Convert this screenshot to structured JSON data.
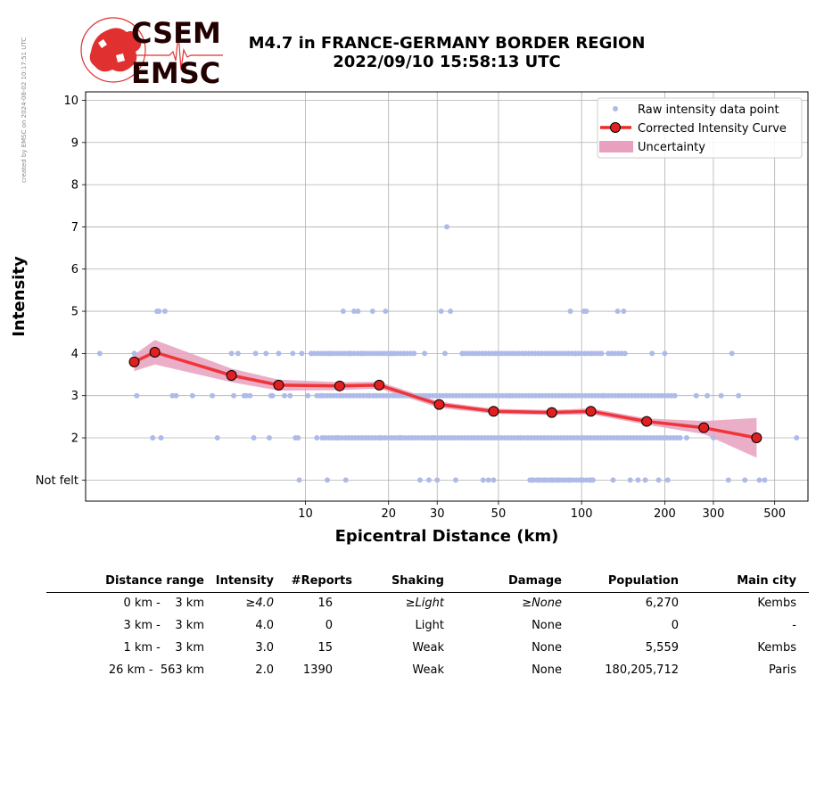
{
  "side_note": "created by EMSC on 2024-08-02 10:17:51 UTC",
  "logo": {
    "line1": "CSEM",
    "line2": "EMSC",
    "brand_color": "#e03030"
  },
  "title": {
    "line1": "M4.7 in FRANCE-GERMANY BORDER REGION",
    "line2": "2022/09/10 15:58:13 UTC"
  },
  "chart_data": {
    "type": "scatter",
    "xlabel": "Epicentral Distance (km)",
    "ylabel": "Intensity",
    "x_scale": "log",
    "xlim": [
      1.6,
      660
    ],
    "ylim": [
      0.5,
      10.2
    ],
    "x_ticks": [
      10,
      20,
      30,
      50,
      100,
      200,
      300,
      500
    ],
    "y_ticks": [
      {
        "value": 1,
        "label": "Not felt"
      },
      {
        "value": 2,
        "label": "2"
      },
      {
        "value": 3,
        "label": "3"
      },
      {
        "value": 4,
        "label": "4"
      },
      {
        "value": 5,
        "label": "5"
      },
      {
        "value": 6,
        "label": "6"
      },
      {
        "value": 7,
        "label": "7"
      },
      {
        "value": 8,
        "label": "8"
      },
      {
        "value": 9,
        "label": "9"
      },
      {
        "value": 10,
        "label": "10"
      }
    ],
    "grid": true,
    "legend_position": "top-right",
    "legend": [
      {
        "label": "Raw intensity data point",
        "kind": "dot"
      },
      {
        "label": "Corrected Intensity Curve",
        "kind": "line"
      },
      {
        "label": "Uncertainty",
        "kind": "band"
      }
    ],
    "colors": {
      "raw": "#aebbe8",
      "curve": "#f02828",
      "marker": "#e02020",
      "band": "#e8a0be"
    },
    "raw_points": [
      {
        "x": 1.8,
        "y": 4
      },
      {
        "x": 2.4,
        "y": 4
      },
      {
        "x": 2.45,
        "y": 3
      },
      {
        "x": 2.8,
        "y": 2
      },
      {
        "x": 2.9,
        "y": 5
      },
      {
        "x": 2.95,
        "y": 5
      },
      {
        "x": 3.0,
        "y": 2
      },
      {
        "x": 3.1,
        "y": 5
      },
      {
        "x": 3.3,
        "y": 3
      },
      {
        "x": 3.4,
        "y": 3
      },
      {
        "x": 3.9,
        "y": 3
      },
      {
        "x": 4.6,
        "y": 3
      },
      {
        "x": 4.8,
        "y": 2
      },
      {
        "x": 5.4,
        "y": 4
      },
      {
        "x": 5.5,
        "y": 3
      },
      {
        "x": 5.7,
        "y": 4
      },
      {
        "x": 6.0,
        "y": 3
      },
      {
        "x": 6.1,
        "y": 3
      },
      {
        "x": 6.3,
        "y": 3
      },
      {
        "x": 6.5,
        "y": 2
      },
      {
        "x": 6.6,
        "y": 4
      },
      {
        "x": 7.2,
        "y": 4
      },
      {
        "x": 7.4,
        "y": 2
      },
      {
        "x": 7.5,
        "y": 3
      },
      {
        "x": 7.6,
        "y": 3
      },
      {
        "x": 8.0,
        "y": 4
      },
      {
        "x": 8.4,
        "y": 3
      },
      {
        "x": 8.8,
        "y": 3
      },
      {
        "x": 9.0,
        "y": 4
      },
      {
        "x": 9.2,
        "y": 2
      },
      {
        "x": 9.4,
        "y": 2
      },
      {
        "x": 9.5,
        "y": 1
      },
      {
        "x": 9.7,
        "y": 4
      },
      {
        "x": 10.2,
        "y": 3
      },
      {
        "x": 10.5,
        "y": 4
      },
      {
        "x": 11,
        "y": 2
      },
      {
        "x": 11.5,
        "y": 3
      },
      {
        "x": 12,
        "y": 1
      },
      {
        "x": 12.3,
        "y": 4
      },
      {
        "x": 13,
        "y": 2
      },
      {
        "x": 13.4,
        "y": 3
      },
      {
        "x": 13.7,
        "y": 5
      },
      {
        "x": 14,
        "y": 1
      },
      {
        "x": 14.5,
        "y": 4
      },
      {
        "x": 15,
        "y": 5
      },
      {
        "x": 15.5,
        "y": 5
      },
      {
        "x": 16,
        "y": 4
      },
      {
        "x": 16.5,
        "y": 2
      },
      {
        "x": 17,
        "y": 3
      },
      {
        "x": 17.5,
        "y": 5
      },
      {
        "x": 18,
        "y": 3
      },
      {
        "x": 18.5,
        "y": 2
      },
      {
        "x": 19.5,
        "y": 5
      },
      {
        "x": 20.5,
        "y": 4
      },
      {
        "x": 22,
        "y": 2
      },
      {
        "x": 24,
        "y": 3
      },
      {
        "x": 26,
        "y": 1
      },
      {
        "x": 27,
        "y": 4
      },
      {
        "x": 28,
        "y": 1
      },
      {
        "x": 29,
        "y": 2
      },
      {
        "x": 30,
        "y": 1
      },
      {
        "x": 31,
        "y": 5
      },
      {
        "x": 32,
        "y": 4
      },
      {
        "x": 32.5,
        "y": 7
      },
      {
        "x": 33.5,
        "y": 5
      },
      {
        "x": 35,
        "y": 1
      },
      {
        "x": 37,
        "y": 4
      },
      {
        "x": 40,
        "y": 2
      },
      {
        "x": 44,
        "y": 1
      },
      {
        "x": 46,
        "y": 1
      },
      {
        "x": 48,
        "y": 1
      },
      {
        "x": 50,
        "y": 4
      },
      {
        "x": 55,
        "y": 3
      },
      {
        "x": 60,
        "y": 2
      },
      {
        "x": 66,
        "y": 1
      },
      {
        "x": 70,
        "y": 1
      },
      {
        "x": 74,
        "y": 1
      },
      {
        "x": 78,
        "y": 1
      },
      {
        "x": 82,
        "y": 1
      },
      {
        "x": 86,
        "y": 1
      },
      {
        "x": 90,
        "y": 1
      },
      {
        "x": 91,
        "y": 5
      },
      {
        "x": 95,
        "y": 4
      },
      {
        "x": 100,
        "y": 1
      },
      {
        "x": 102,
        "y": 5
      },
      {
        "x": 104,
        "y": 5
      },
      {
        "x": 108,
        "y": 1
      },
      {
        "x": 120,
        "y": 3
      },
      {
        "x": 130,
        "y": 1
      },
      {
        "x": 135,
        "y": 5
      },
      {
        "x": 142,
        "y": 5
      },
      {
        "x": 150,
        "y": 1
      },
      {
        "x": 160,
        "y": 1
      },
      {
        "x": 170,
        "y": 1
      },
      {
        "x": 180,
        "y": 4
      },
      {
        "x": 190,
        "y": 1
      },
      {
        "x": 200,
        "y": 4
      },
      {
        "x": 205,
        "y": 1
      },
      {
        "x": 240,
        "y": 2
      },
      {
        "x": 260,
        "y": 3
      },
      {
        "x": 285,
        "y": 3
      },
      {
        "x": 300,
        "y": 2
      },
      {
        "x": 320,
        "y": 3
      },
      {
        "x": 340,
        "y": 1
      },
      {
        "x": 350,
        "y": 4
      },
      {
        "x": 370,
        "y": 3
      },
      {
        "x": 390,
        "y": 1
      },
      {
        "x": 440,
        "y": 1
      },
      {
        "x": 460,
        "y": 1
      },
      {
        "x": 600,
        "y": 2
      }
    ],
    "raw_runs": [
      {
        "y": 4,
        "from": 10.5,
        "to": 25
      },
      {
        "y": 4,
        "from": 37,
        "to": 120
      },
      {
        "y": 4,
        "from": 125,
        "to": 145
      },
      {
        "y": 3,
        "from": 11,
        "to": 220
      },
      {
        "y": 2,
        "from": 11.5,
        "to": 230
      },
      {
        "y": 1,
        "from": 65,
        "to": 110
      }
    ],
    "curve": [
      {
        "x": 2.4,
        "y": 3.8
      },
      {
        "x": 2.85,
        "y": 4.03
      },
      {
        "x": 5.4,
        "y": 3.48
      },
      {
        "x": 8.0,
        "y": 3.25
      },
      {
        "x": 13.3,
        "y": 3.23
      },
      {
        "x": 18.5,
        "y": 3.25
      },
      {
        "x": 30.5,
        "y": 2.79
      },
      {
        "x": 48,
        "y": 2.63
      },
      {
        "x": 78,
        "y": 2.6
      },
      {
        "x": 108,
        "y": 2.63
      },
      {
        "x": 172,
        "y": 2.39
      },
      {
        "x": 277,
        "y": 2.24
      },
      {
        "x": 430,
        "y": 2.0
      }
    ],
    "band_upper": [
      3.97,
      4.32,
      3.64,
      3.38,
      3.32,
      3.33,
      2.86,
      2.69,
      2.66,
      2.7,
      2.46,
      2.4,
      2.47
    ],
    "band_lower": [
      3.58,
      3.74,
      3.32,
      3.12,
      3.13,
      3.17,
      2.71,
      2.57,
      2.54,
      2.56,
      2.31,
      2.09,
      1.53
    ]
  },
  "table": {
    "headers": [
      "Distance range",
      "Intensity",
      "#Reports",
      "Shaking",
      "Damage",
      "Population",
      "Main city"
    ],
    "rows": [
      {
        "range": "0 km -    3 km",
        "intensity": "≥4.0",
        "reports": "16",
        "shaking": "≥Light",
        "damage": "≥None",
        "population": "6,270",
        "city": "Kembs",
        "italic": true
      },
      {
        "range": "3 km -    3 km",
        "intensity": "4.0",
        "reports": "0",
        "shaking": "Light",
        "damage": "None",
        "population": "0",
        "city": "-",
        "italic": false
      },
      {
        "range": "1 km -    3 km",
        "intensity": "3.0",
        "reports": "15",
        "shaking": "Weak",
        "damage": "None",
        "population": "5,559",
        "city": "Kembs",
        "italic": false
      },
      {
        "range": "26 km -  563 km",
        "intensity": "2.0",
        "reports": "1390",
        "shaking": "Weak",
        "damage": "None",
        "population": "180,205,712",
        "city": "Paris",
        "italic": false
      }
    ]
  }
}
